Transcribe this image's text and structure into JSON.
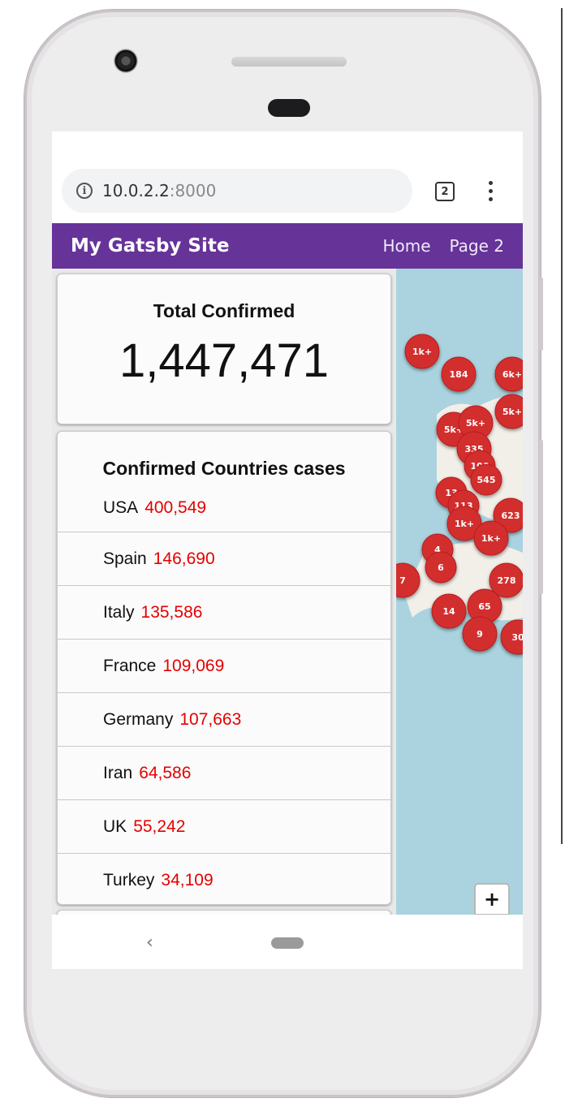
{
  "browser": {
    "url_host": "10.0.2.2",
    "url_port": ":8000",
    "tab_count": "2",
    "info_icon": "info-icon",
    "menu_icon": "more-vert-icon"
  },
  "site": {
    "brand": "My Gatsby Site",
    "nav": [
      {
        "label": "Home"
      },
      {
        "label": "Page 2"
      }
    ]
  },
  "total": {
    "title": "Total Confirmed",
    "value": "1,447,471"
  },
  "countries": {
    "title": "Confirmed Countries cases",
    "items": [
      {
        "name": "USA",
        "value": "400,549"
      },
      {
        "name": "Spain",
        "value": "146,690"
      },
      {
        "name": "Italy",
        "value": "135,586"
      },
      {
        "name": "France",
        "value": "109,069"
      },
      {
        "name": "Germany",
        "value": "107,663"
      },
      {
        "name": "Iran",
        "value": "64,586"
      },
      {
        "name": "UK",
        "value": "55,242"
      },
      {
        "name": "Turkey",
        "value": "34,109"
      }
    ]
  },
  "map": {
    "zoom_in_label": "+",
    "clusters": [
      {
        "label": "1k+"
      },
      {
        "label": "184"
      },
      {
        "label": "6k+"
      },
      {
        "label": "5k+"
      },
      {
        "label": "5k+"
      },
      {
        "label": "5k+"
      },
      {
        "label": "335"
      },
      {
        "label": "100"
      },
      {
        "label": "545"
      },
      {
        "label": "13"
      },
      {
        "label": "113"
      },
      {
        "label": "623"
      },
      {
        "label": "1k+"
      },
      {
        "label": "1k+"
      },
      {
        "label": "4"
      },
      {
        "label": "6"
      },
      {
        "label": "7"
      },
      {
        "label": "278"
      },
      {
        "label": "65"
      },
      {
        "label": "14"
      },
      {
        "label": "9"
      },
      {
        "label": "30"
      }
    ]
  },
  "colors": {
    "header_bg": "#663399",
    "value_red": "#e60000",
    "cluster_red": "#d32f2f",
    "map_water": "#aad3df"
  }
}
